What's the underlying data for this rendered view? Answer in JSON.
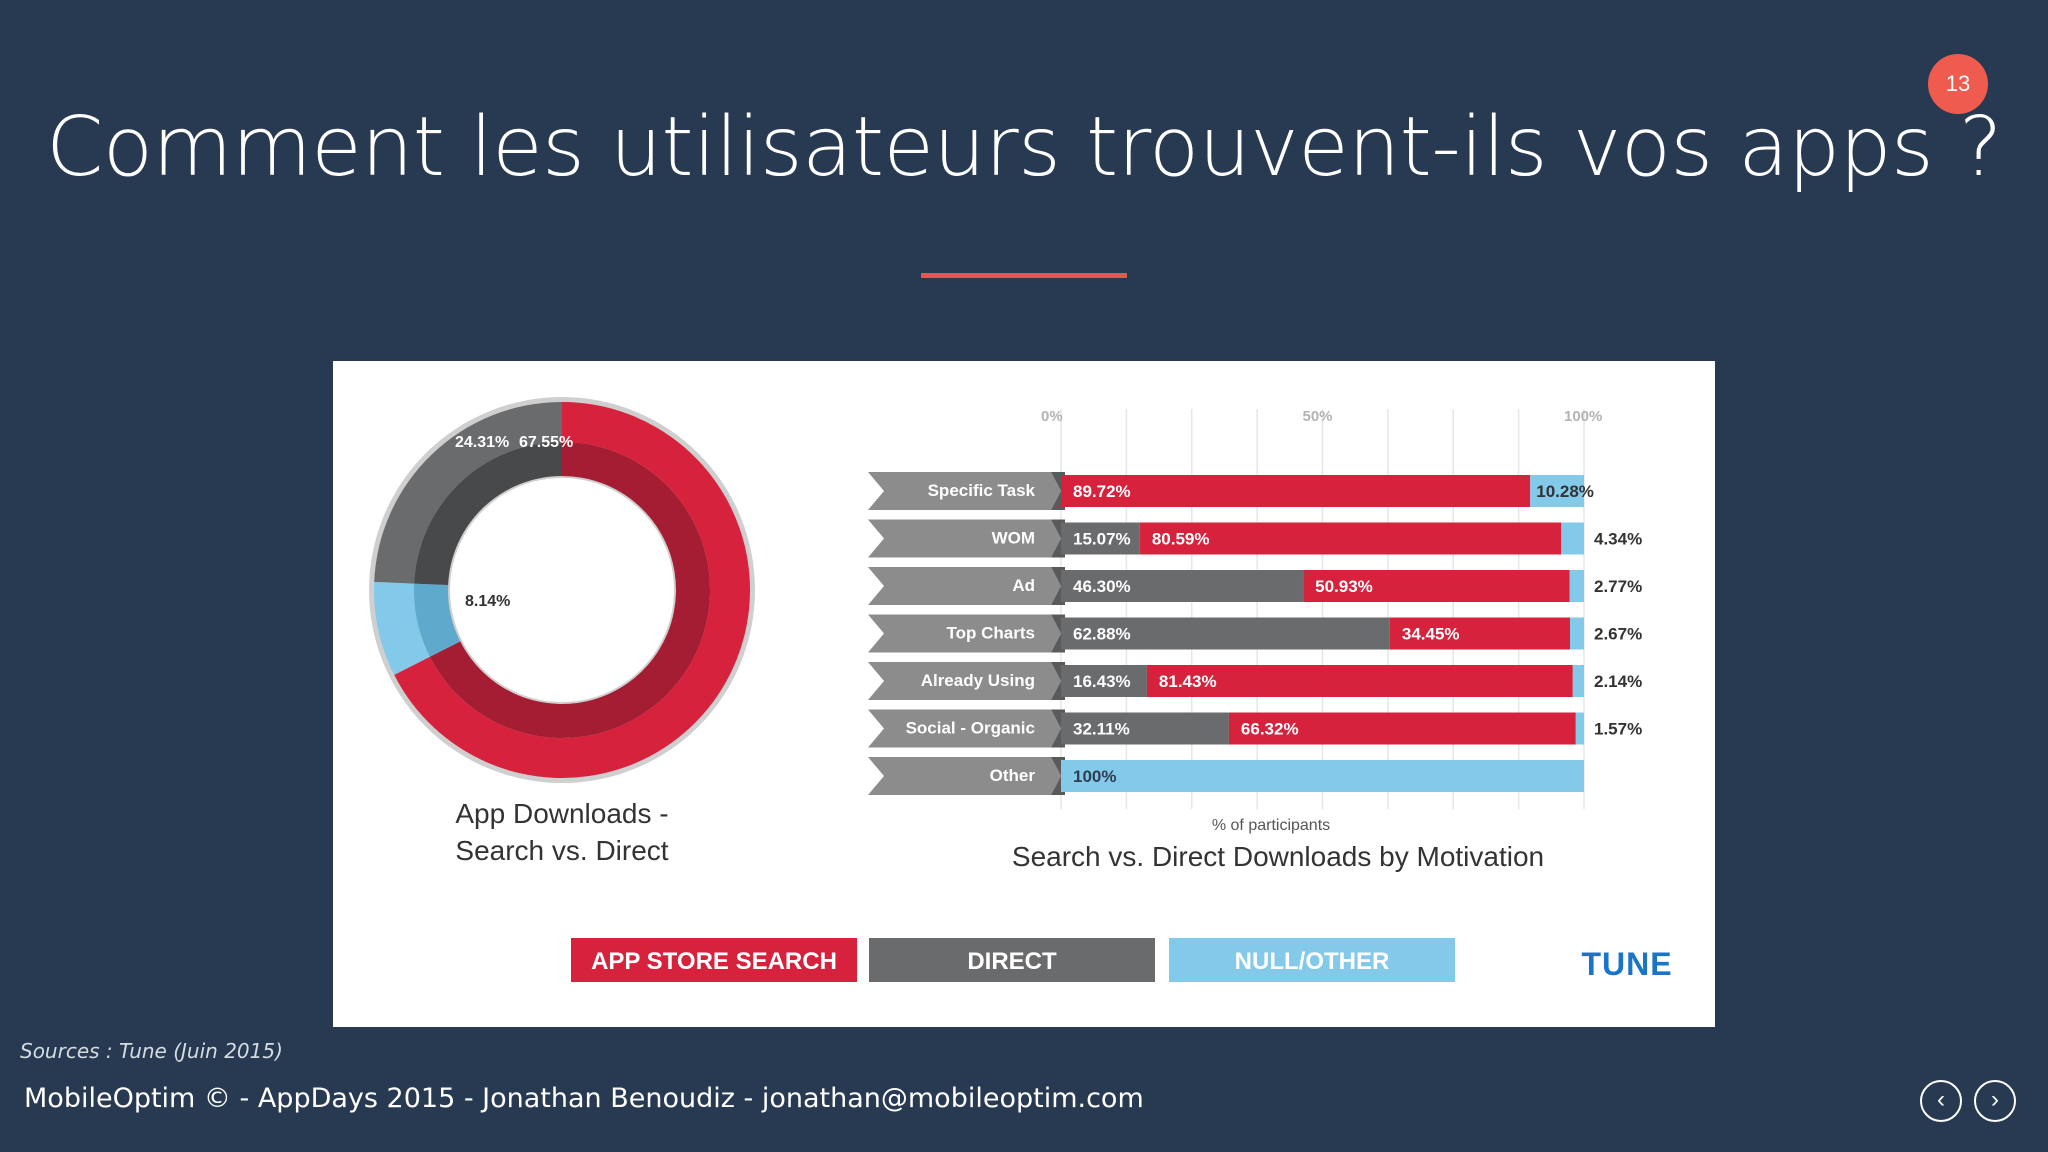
{
  "slide": {
    "title": "Comment les utilisateurs trouvent-ils vos apps ?",
    "page_number": "13",
    "source": "Sources : Tune (Juin 2015)",
    "footer": "MobileOptim © - AppDays 2015 - Jonathan Benoudiz - jonathan@mobileoptim.com",
    "nav_prev_icon": "chevron-left-icon",
    "nav_next_icon": "chevron-right-icon"
  },
  "colors": {
    "app_store_search": "#d6223d",
    "direct": "#6a6b6d",
    "null_other": "#82c9ea",
    "brand_tune": "#1a74c9",
    "accent": "#e8574b",
    "background": "#283a51"
  },
  "chart_data": [
    {
      "type": "pie",
      "title": "App Downloads -\nSearch vs. Direct",
      "categories": [
        "APP STORE SEARCH",
        "DIRECT",
        "NULL/OTHER"
      ],
      "values": [
        67.55,
        24.31,
        8.14
      ],
      "labels": [
        "67.55%",
        "24.31%",
        "8.14%"
      ]
    },
    {
      "type": "bar",
      "orientation": "horizontal",
      "stacked": true,
      "title": "Search vs. Direct Downloads by Motivation",
      "xlabel": "% of participants",
      "xlim": [
        0,
        100
      ],
      "x_ticks": [
        "0%",
        "50%",
        "100%"
      ],
      "categories": [
        "Specific Task",
        "WOM",
        "Ad",
        "Top Charts",
        "Already Using",
        "Social - Organic",
        "Other"
      ],
      "series": [
        {
          "name": "DIRECT",
          "values": [
            0,
            15.07,
            46.3,
            62.88,
            16.43,
            32.11,
            0
          ],
          "labels": [
            "",
            "15.07%",
            "46.30%",
            "62.88%",
            "16.43%",
            "32.11%",
            ""
          ]
        },
        {
          "name": "APP STORE SEARCH",
          "values": [
            89.72,
            80.59,
            50.93,
            34.45,
            81.43,
            66.32,
            0
          ],
          "labels": [
            "89.72%",
            "80.59%",
            "50.93%",
            "34.45%",
            "81.43%",
            "66.32%",
            ""
          ]
        },
        {
          "name": "NULL/OTHER",
          "values": [
            10.28,
            4.34,
            2.77,
            2.67,
            2.14,
            1.57,
            100
          ],
          "labels": [
            "10.28%",
            "4.34%",
            "2.77%",
            "2.67%",
            "2.14%",
            "1.57%",
            "100%"
          ]
        }
      ],
      "legend": [
        "APP STORE SEARCH",
        "DIRECT",
        "NULL/OTHER"
      ],
      "legend_position": "bottom",
      "brand": "TUNE"
    }
  ]
}
